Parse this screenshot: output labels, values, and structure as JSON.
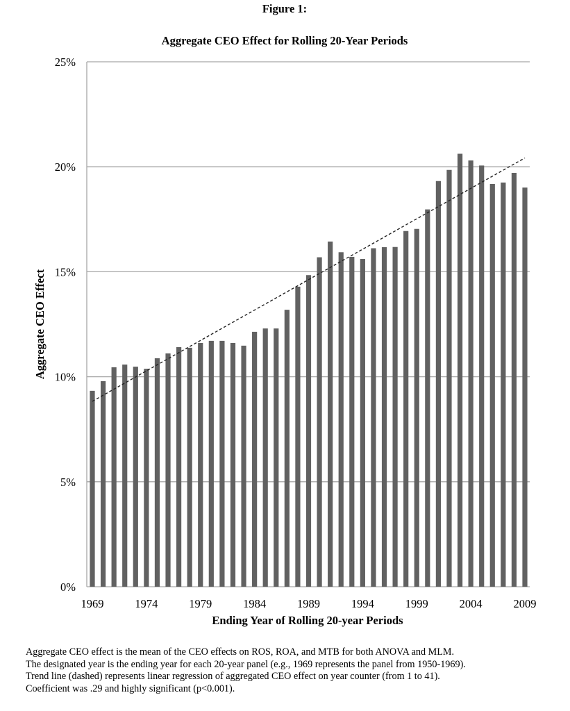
{
  "chart_data": {
    "type": "bar",
    "title": "Figure 1:",
    "subtitle": "Aggregate CEO Effect for Rolling 20-Year Periods",
    "xlabel": "Ending Year of Rolling 20-year Periods",
    "ylabel": "Aggregate CEO Effect",
    "ylim": [
      0,
      25
    ],
    "yticks": [
      "0%",
      "5%",
      "10%",
      "15%",
      "20%",
      "25%"
    ],
    "xticks": [
      "1969",
      "1974",
      "1979",
      "1984",
      "1989",
      "1994",
      "1999",
      "2004",
      "2009"
    ],
    "grid": true,
    "bar_color": "#616161",
    "categories": [
      1969,
      1970,
      1971,
      1972,
      1973,
      1974,
      1975,
      1976,
      1977,
      1978,
      1979,
      1980,
      1981,
      1982,
      1983,
      1984,
      1985,
      1986,
      1987,
      1988,
      1989,
      1990,
      1991,
      1992,
      1993,
      1994,
      1995,
      1996,
      1997,
      1998,
      1999,
      2000,
      2001,
      2002,
      2003,
      2004,
      2005,
      2006,
      2007,
      2008,
      2009
    ],
    "values": [
      9.33,
      9.79,
      10.45,
      10.58,
      10.48,
      10.38,
      10.88,
      11.11,
      11.41,
      11.38,
      11.61,
      11.71,
      11.71,
      11.61,
      11.48,
      12.14,
      12.3,
      12.3,
      13.19,
      14.29,
      14.84,
      15.69,
      16.44,
      15.93,
      15.71,
      15.61,
      16.12,
      16.17,
      16.18,
      16.94,
      17.04,
      17.97,
      19.32,
      19.85,
      20.62,
      20.3,
      20.06,
      19.18,
      19.25,
      19.71,
      19.01
    ],
    "trendline": {
      "style": "dashed",
      "start": [
        1969,
        8.83
      ],
      "end": [
        2009,
        20.42
      ]
    }
  },
  "caption": [
    "Aggregate CEO effect is the mean of the CEO effects on ROS, ROA, and MTB for both ANOVA and MLM.",
    "The designated year is the ending year for each 20-year panel (e.g., 1969 represents the panel from 1950-1969).",
    "Trend line (dashed) represents linear regression of aggregated CEO effect on year counter (from 1 to 41).",
    "Coefficient was .29 and highly significant (p<0.001)."
  ]
}
